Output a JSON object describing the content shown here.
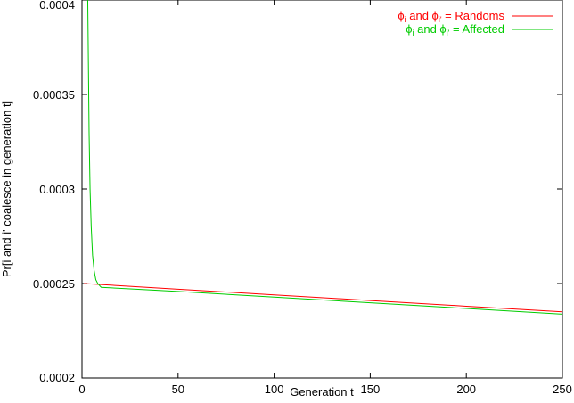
{
  "chart_data": {
    "type": "line",
    "xlabel": "Generation t",
    "ylabel": "Pr[i and i' coalesce in generation t]",
    "xlim": [
      0,
      250
    ],
    "ylim": [
      0.0002,
      0.0004
    ],
    "xticks": [
      0,
      50,
      100,
      150,
      200,
      250
    ],
    "yticks": [
      0.0002,
      0.00025,
      0.0003,
      0.00035,
      0.0004
    ],
    "xtick_labels": [
      "0",
      "50",
      "100",
      "150",
      "200",
      "250"
    ],
    "ytick_labels": [
      "0.0002",
      "0.00025",
      "0.0003",
      "0.00035",
      "0.0004"
    ],
    "grid": false,
    "legend_position": "top-right",
    "series": [
      {
        "name": "Randoms",
        "legend_prefix": "ϕ",
        "legend_sub1": "i",
        "legend_mid": " and ϕ",
        "legend_sub2": "i'",
        "legend_suffix": " = Randoms",
        "color": "#ff0000",
        "x": [
          1,
          50,
          100,
          150,
          200,
          250
        ],
        "y": [
          0.00025,
          0.000247,
          0.000244,
          0.000241,
          0.000238,
          0.000235
        ]
      },
      {
        "name": "Affected",
        "legend_prefix": "ϕ",
        "legend_sub1": "i",
        "legend_mid": " and ϕ",
        "legend_sub2": "i'",
        "legend_suffix": " = Affected",
        "color": "#00cc00",
        "x": [
          3,
          3.3,
          3.7,
          4.2,
          4.8,
          5.5,
          6.3,
          7.2,
          8.2,
          10,
          50,
          100,
          150,
          200,
          250
        ],
        "y": [
          0.0004,
          0.00037,
          0.00033,
          0.0003,
          0.00028,
          0.000265,
          0.000257,
          0.000252,
          0.00025,
          0.000248,
          0.0002458,
          0.0002428,
          0.0002398,
          0.0002368,
          0.0002338
        ]
      }
    ]
  }
}
